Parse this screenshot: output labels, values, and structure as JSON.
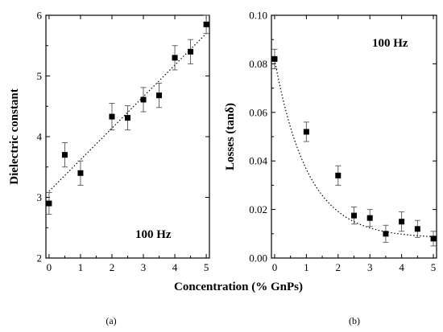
{
  "figure": {
    "shared_xlabel": "Concentration (% GnPs)"
  },
  "chart_data": [
    {
      "type": "scatter",
      "panel_label": "(a)",
      "annotation": "100 Hz",
      "xlabel": "",
      "ylabel": "Dielectric constant",
      "xlim": [
        -0.1,
        5.1
      ],
      "ylim": [
        2,
        6
      ],
      "x_ticks": [
        0,
        1,
        2,
        3,
        4,
        5
      ],
      "y_ticks": [
        2,
        3,
        4,
        5,
        6
      ],
      "fit": "linear",
      "series": [
        {
          "x": [
            0,
            0.5,
            1,
            2,
            2.5,
            3,
            3.5,
            4,
            4.5,
            5
          ],
          "y": [
            2.9,
            3.7,
            3.4,
            4.33,
            4.31,
            4.61,
            4.68,
            5.3,
            5.4,
            5.85
          ],
          "error": [
            0.18,
            0.2,
            0.2,
            0.22,
            0.2,
            0.2,
            0.2,
            0.2,
            0.2,
            0.15
          ]
        }
      ],
      "fit_line": {
        "x": [
          0,
          5
        ],
        "y": [
          3.1,
          5.7
        ]
      },
      "grid": false,
      "legend": "none"
    },
    {
      "type": "scatter",
      "panel_label": "(b)",
      "annotation": "100 Hz",
      "xlabel": "",
      "ylabel": "Losses (tanδ)",
      "xlim": [
        -0.1,
        5.1
      ],
      "ylim": [
        0,
        0.1
      ],
      "x_ticks": [
        0,
        1,
        2,
        3,
        4,
        5
      ],
      "y_ticks": [
        "0.00",
        "0.02",
        "0.04",
        "0.06",
        "0.08",
        "0.10"
      ],
      "fit": "exponential decay",
      "series": [
        {
          "x": [
            0,
            1,
            2,
            2.5,
            3,
            3.5,
            4,
            4.5,
            5
          ],
          "y": [
            0.082,
            0.052,
            0.034,
            0.0175,
            0.0165,
            0.01,
            0.015,
            0.012,
            0.008
          ],
          "error": [
            0.004,
            0.004,
            0.004,
            0.0035,
            0.0035,
            0.0035,
            0.004,
            0.0035,
            0.003
          ]
        }
      ],
      "fit_curve": {
        "y0": 0.0082,
        "A": 0.0735,
        "t": 1.05
      },
      "grid": false,
      "legend": "none"
    }
  ]
}
